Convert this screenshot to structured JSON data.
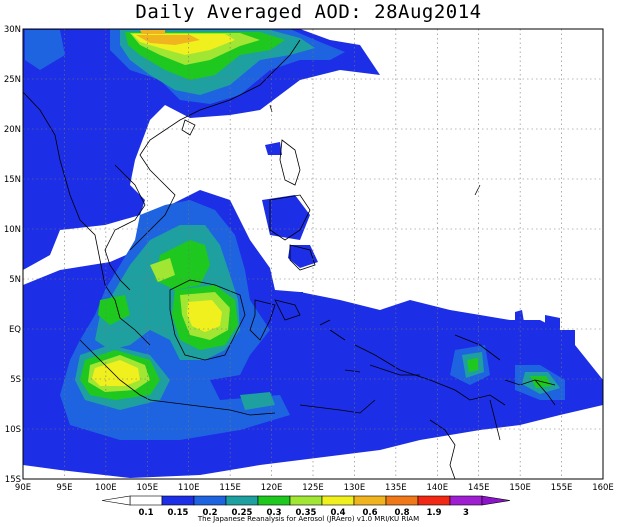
{
  "title": "Daily Averaged AOD: 28Aug2014",
  "map": {
    "lon_range": [
      90,
      160
    ],
    "lat_range": [
      -15,
      30
    ],
    "lon_ticks": [
      "90E",
      "95E",
      "100E",
      "105E",
      "110E",
      "115E",
      "120E",
      "125E",
      "130E",
      "135E",
      "140E",
      "145E",
      "150E",
      "155E",
      "160E"
    ],
    "lat_ticks": [
      "15S",
      "10S",
      "5S",
      "EQ",
      "5N",
      "10N",
      "15N",
      "20N",
      "25N",
      "30N"
    ],
    "grid": true,
    "grid_style": "dotted"
  },
  "colorbar": {
    "labels": [
      "0.1",
      "0.15",
      "0.2",
      "0.25",
      "0.3",
      "0.35",
      "0.4",
      "0.6",
      "0.8",
      "1.9",
      "3"
    ],
    "colors": [
      "#ffffff",
      "#1c2ee6",
      "#1e64e0",
      "#1ea0a0",
      "#1ec81e",
      "#a0e632",
      "#f0f01e",
      "#f0b41e",
      "#f07818",
      "#f02814",
      "#a01ed2"
    ]
  },
  "credit": "The Japanese Reanalysis for Aerosol (JRAero) v1.0 MRI/KU RIAM"
}
